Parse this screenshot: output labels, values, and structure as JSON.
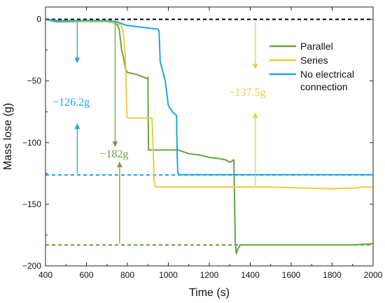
{
  "chart_data": {
    "type": "line",
    "title": "",
    "xlabel": "Time (s)",
    "ylabel": "Mass lose (g)",
    "xlim": [
      400,
      2000
    ],
    "ylim": [
      -200,
      10
    ],
    "xticks": [
      400,
      600,
      800,
      1000,
      1200,
      1400,
      1600,
      1800,
      2000
    ],
    "yticks": [
      0,
      -50,
      -100,
      -150,
      -200
    ],
    "xtick_labels": [
      "400",
      "600",
      "800",
      "1000",
      "1200",
      "1400",
      "1600",
      "1800",
      "2000"
    ],
    "ytick_labels": [
      "0",
      "−50",
      "−100",
      "−150",
      "−200"
    ],
    "grid": false,
    "legend_position": "top-right",
    "series": [
      {
        "name": "Parallel",
        "color": "#6ba342",
        "x": [
          400,
          450,
          600,
          700,
          740,
          752,
          760,
          772,
          780,
          790,
          800,
          850,
          880,
          895,
          900,
          903,
          950,
          1000,
          1050,
          1100,
          1150,
          1200,
          1250,
          1280,
          1300,
          1320,
          1327,
          1330,
          1332,
          1336,
          1340,
          1345,
          1350,
          1360,
          1400,
          1500,
          1600,
          1700,
          1800,
          1900,
          2000
        ],
        "y": [
          0,
          -2,
          -2,
          -2,
          -3,
          -5,
          -8,
          -25,
          -30,
          -40,
          -43,
          -45,
          -47,
          -48,
          -47,
          -106,
          -106,
          -106,
          -106,
          -109,
          -110,
          -112,
          -113,
          -114,
          -116,
          -114,
          -180,
          -186,
          -190,
          -188,
          -186,
          -185,
          -183,
          -183,
          -183,
          -183,
          -183,
          -183,
          -183,
          -183,
          -182
        ]
      },
      {
        "name": "Series",
        "color": "#ecce3b",
        "x": [
          400,
          450,
          600,
          700,
          750,
          770,
          780,
          790,
          795,
          798,
          800,
          850,
          900,
          920,
          925,
          930,
          935,
          940,
          950,
          1000,
          1100,
          1200,
          1300,
          1400,
          1500,
          1600,
          1700,
          1800,
          1850,
          1900,
          1950,
          2000
        ],
        "y": [
          0,
          -1,
          -2,
          -2,
          -3,
          -5,
          -10,
          -30,
          -60,
          -78,
          -80,
          -80,
          -80,
          -80,
          -100,
          -130,
          -135,
          -136,
          -136,
          -136,
          -136,
          -136,
          -136,
          -136,
          -136,
          -136.5,
          -137,
          -137.5,
          -137,
          -137,
          -136,
          -136
        ]
      },
      {
        "name": "No electrical connection",
        "color": "#1aa6e3",
        "x": [
          400,
          450,
          600,
          700,
          750,
          780,
          800,
          850,
          900,
          950,
          955,
          960,
          985,
          1000,
          1020,
          1040,
          1043,
          1046,
          1050,
          1100,
          1200,
          1400,
          1600,
          1800,
          2000
        ],
        "y": [
          0,
          -1,
          -1,
          -1,
          -2,
          -4,
          -5,
          -6,
          -7,
          -8,
          -10,
          -34,
          -50,
          -70,
          -75,
          -78,
          -110,
          -124,
          -126,
          -126,
          -126,
          -126,
          -126,
          -126,
          -126
        ]
      }
    ],
    "reference_lines": [
      {
        "y": 0,
        "color": "#000000",
        "style": "dashed",
        "label": ""
      },
      {
        "y": -126.2,
        "color": "#1aa6e3",
        "style": "dashed",
        "label": ""
      },
      {
        "y": -183,
        "color": "#6ba342",
        "style": "dashed",
        "label": ""
      }
    ],
    "annotations": [
      {
        "text": "−126.2g",
        "x": 525,
        "y": -70,
        "color": "#1aa6e3",
        "arrow": {
          "x": 555,
          "y_from": -126.2,
          "y_to": 0,
          "gap_top": -35,
          "gap_bottom": -85
        }
      },
      {
        "text": "−182g",
        "x": 735,
        "y": -112,
        "color": "#6ba342",
        "arrow": {
          "x": 740,
          "x2": 762,
          "y_from": -183,
          "y_to": 0,
          "gap_top": -103,
          "gap_bottom": -116
        }
      },
      {
        "text": "−137.5g",
        "x": 1385,
        "y": -62,
        "color": "#ecce3b",
        "arrow": {
          "x": 1425,
          "y_from": -136,
          "y_to": 0,
          "gap_top": -40,
          "gap_bottom": -76
        }
      }
    ]
  }
}
